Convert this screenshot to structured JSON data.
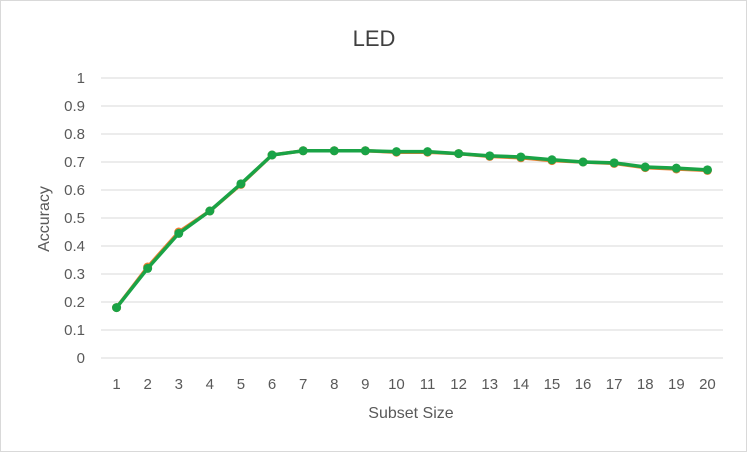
{
  "chart_data": {
    "type": "line",
    "title": "LED",
    "xlabel": "Subset Size",
    "ylabel": "Accuracy",
    "categories": [
      "1",
      "2",
      "3",
      "4",
      "5",
      "6",
      "7",
      "8",
      "9",
      "10",
      "11",
      "12",
      "13",
      "14",
      "15",
      "16",
      "17",
      "18",
      "19",
      "20"
    ],
    "yticks": [
      "0",
      "0.1",
      "0.2",
      "0.3",
      "0.4",
      "0.5",
      "0.6",
      "0.7",
      "0.8",
      "0.9",
      "1"
    ],
    "ylim": [
      0,
      1
    ],
    "grid": true,
    "legend": "none",
    "series": [
      {
        "color": "#ED7D31",
        "values": [
          0.18,
          0.325,
          0.45,
          0.525,
          0.62,
          0.725,
          0.74,
          0.74,
          0.74,
          0.735,
          0.735,
          0.73,
          0.72,
          0.715,
          0.705,
          0.7,
          0.695,
          0.68,
          0.675,
          0.67
        ]
      },
      {
        "color": "#1AA346",
        "values": [
          0.18,
          0.32,
          0.445,
          0.525,
          0.622,
          0.725,
          0.74,
          0.74,
          0.74,
          0.737,
          0.737,
          0.73,
          0.722,
          0.718,
          0.708,
          0.7,
          0.697,
          0.682,
          0.678,
          0.672
        ]
      }
    ]
  }
}
